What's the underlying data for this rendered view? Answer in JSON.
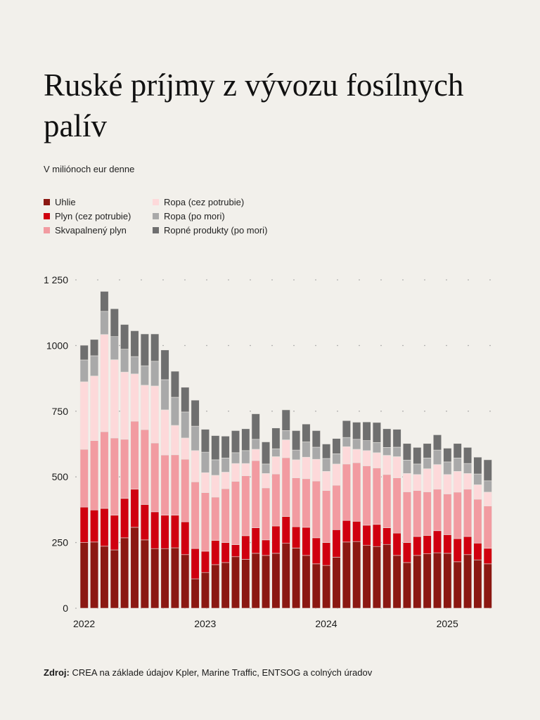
{
  "title": "Ruské príjmy z vývozu fosílnych palív",
  "subtitle": "V miliónoch eur denne",
  "source_label": "Zdroj:",
  "source_text": "CREA na základe údajov Kpler, Marine Traffic, ENTSOG a colných úradov",
  "chart_data": {
    "type": "bar",
    "stacked": true,
    "title": "Ruské príjmy z vývozu fosílnych palív",
    "ylabel": "V miliónoch eur denne",
    "xlabel": "",
    "ylim": [
      0,
      1250
    ],
    "yticks": [
      0,
      250,
      500,
      750,
      1000,
      1250
    ],
    "ytick_labels": [
      "0",
      "250",
      "500",
      "750",
      "1000",
      "1 250"
    ],
    "grid": true,
    "legend_placement": "top-left",
    "x_tick_labels": [
      {
        "label": "2022",
        "index": 0
      },
      {
        "label": "2023",
        "index": 12
      },
      {
        "label": "2024",
        "index": 24
      },
      {
        "label": "2025",
        "index": 36
      }
    ],
    "categories": [
      "2022-01",
      "2022-02",
      "2022-03",
      "2022-04",
      "2022-05",
      "2022-06",
      "2022-07",
      "2022-08",
      "2022-09",
      "2022-10",
      "2022-11",
      "2022-12",
      "2023-01",
      "2023-02",
      "2023-03",
      "2023-04",
      "2023-05",
      "2023-06",
      "2023-07",
      "2023-08",
      "2023-09",
      "2023-10",
      "2023-11",
      "2023-12",
      "2024-01",
      "2024-02",
      "2024-03",
      "2024-04",
      "2024-05",
      "2024-06",
      "2024-07",
      "2024-08",
      "2024-09",
      "2024-10",
      "2024-11",
      "2024-12",
      "2025-01",
      "2025-02",
      "2025-03",
      "2025-04",
      "2025-05"
    ],
    "series": [
      {
        "name": "Uhlie",
        "color": "#8b1812",
        "values": [
          250,
          252,
          236,
          222,
          268,
          308,
          260,
          227,
          227,
          230,
          204,
          112,
          136,
          166,
          174,
          196,
          186,
          209,
          201,
          209,
          247,
          229,
          201,
          169,
          163,
          194,
          252,
          254,
          239,
          235,
          243,
          201,
          174,
          201,
          207,
          211,
          209,
          177,
          204,
          184,
          169
        ]
      },
      {
        "name": "Plyn (cez potrubie)",
        "color": "#d0000f",
        "values": [
          135,
          122,
          144,
          132,
          150,
          145,
          135,
          140,
          127,
          124,
          125,
          115,
          81,
          92,
          76,
          46,
          90,
          97,
          59,
          104,
          102,
          81,
          107,
          99,
          87,
          105,
          82,
          77,
          77,
          84,
          63,
          85,
          76,
          72,
          70,
          84,
          71,
          88,
          69,
          64,
          59
        ]
      },
      {
        "name": "Skvapalnený plyn",
        "color": "#f29ba1",
        "values": [
          220,
          264,
          292,
          294,
          225,
          259,
          285,
          262,
          229,
          230,
          238,
          254,
          223,
          165,
          205,
          241,
          228,
          256,
          198,
          198,
          224,
          186,
          185,
          216,
          198,
          169,
          215,
          223,
          226,
          215,
          203,
          210,
          193,
          175,
          166,
          158,
          155,
          177,
          180,
          167,
          161
        ]
      },
      {
        "name": "Ropa (cez potrubie)",
        "color": "#fdd9da",
        "values": [
          257,
          246,
          370,
          298,
          256,
          180,
          169,
          217,
          172,
          112,
          81,
          119,
          76,
          83,
          63,
          68,
          47,
          43,
          55,
          66,
          68,
          69,
          82,
          83,
          73,
          81,
          66,
          51,
          58,
          58,
          73,
          81,
          70,
          61,
          88,
          94,
          74,
          79,
          60,
          55,
          53
        ]
      },
      {
        "name": "Ropa (po mori)",
        "color": "#a9a9a9",
        "values": [
          83,
          77,
          88,
          88,
          87,
          66,
          74,
          94,
          115,
          107,
          99,
          93,
          78,
          59,
          54,
          41,
          49,
          38,
          36,
          30,
          35,
          37,
          58,
          46,
          49,
          39,
          35,
          38,
          38,
          39,
          30,
          36,
          51,
          40,
          41,
          55,
          48,
          51,
          38,
          41,
          43
        ]
      },
      {
        "name": "Ropné produkty (po mori)",
        "color": "#6f6f6f",
        "values": [
          56,
          62,
          76,
          106,
          94,
          98,
          121,
          104,
          113,
          99,
          94,
          99,
          87,
          92,
          83,
          84,
          83,
          97,
          84,
          79,
          79,
          74,
          68,
          63,
          55,
          58,
          64,
          65,
          71,
          76,
          71,
          68,
          63,
          63,
          55,
          58,
          52,
          55,
          61,
          64,
          80
        ]
      }
    ]
  }
}
